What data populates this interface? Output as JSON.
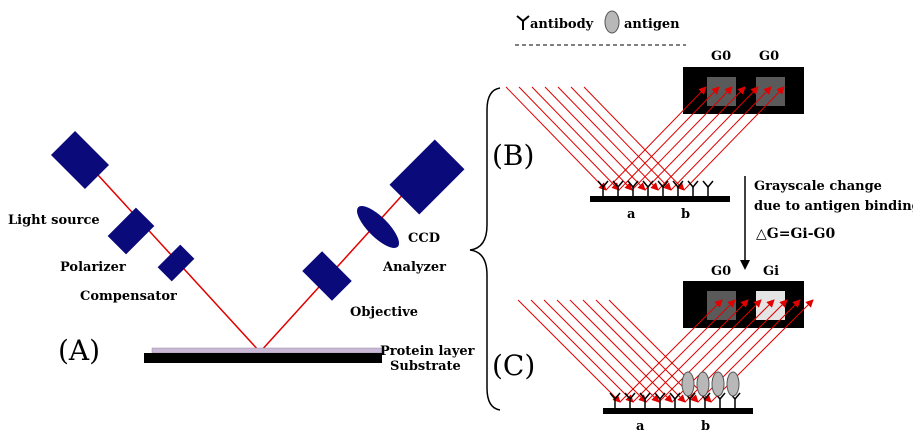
{
  "colors": {
    "component": "#0a0a7a",
    "beam": "#e10000",
    "substrate": "#000000",
    "protein_layer": "#c9b8d6",
    "antigen": "#b8b8b8",
    "detector_dark": "#5a5a5a",
    "detector_light": "#e4e4e4"
  },
  "legend": {
    "antibody": "antibody",
    "antigen": "antigen",
    "antibody_icon": "y-shaped-antibody-icon",
    "antigen_icon": "ellipse-antigen-icon"
  },
  "panel_a": {
    "label": "(A)",
    "light_source": "Light source",
    "polarizer": "Polarizer",
    "compensator": "Compensator",
    "objective": "Objective",
    "analyzer": "Analyzer",
    "ccd": "CCD",
    "protein_layer": "Protein layer",
    "substrate": "Substrate"
  },
  "panel_b": {
    "label": "(B)",
    "cell_left": "G0",
    "cell_right": "G0",
    "spot_a": "a",
    "spot_b": "b"
  },
  "arrow_note": {
    "line1": "Grayscale change",
    "line2": "due to antigen binding",
    "formula": "△G=Gi-G0"
  },
  "panel_c": {
    "label": "(C)",
    "cell_left": "G0",
    "cell_right": "Gi",
    "spot_a": "a",
    "spot_b": "b"
  }
}
